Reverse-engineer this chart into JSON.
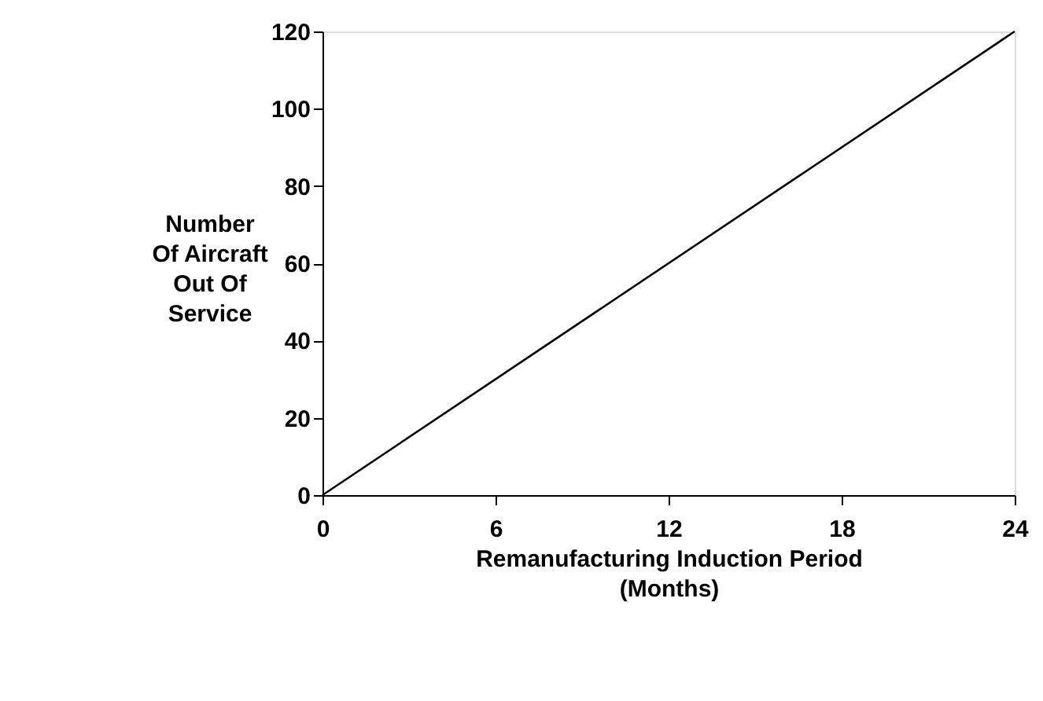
{
  "chart_data": {
    "type": "line",
    "xlabel": "Remanufacturing Induction Period\n(Months)",
    "ylabel": "Number\nOf Aircraft\nOut Of\nService",
    "x": [
      0,
      24
    ],
    "series": [
      {
        "color": "#000000",
        "values": [
          0,
          120
        ]
      }
    ],
    "xlim": [
      0,
      24
    ],
    "xticks": [
      0,
      6,
      12,
      18,
      24
    ],
    "ylim": [
      0,
      120
    ],
    "yticks": [
      0,
      20,
      40,
      60,
      80,
      100,
      120
    ],
    "grid": false,
    "marker": "none",
    "line_style": "solid"
  }
}
